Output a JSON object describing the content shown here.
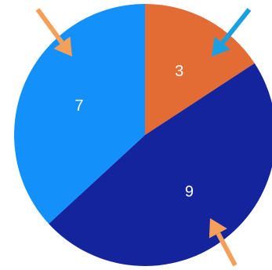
{
  "chart_data": {
    "type": "pie",
    "slices": [
      {
        "label": "3",
        "value": 3,
        "color": "#E36C35"
      },
      {
        "label": "9",
        "value": 9,
        "color": "#14249C"
      },
      {
        "label": "7",
        "value": 7,
        "color": "#1490FA"
      }
    ],
    "start_angle_deg": 0,
    "direction": "clockwise"
  },
  "arrows": [
    {
      "color": "#F5A05A",
      "points_to": "7"
    },
    {
      "color": "#1AA0E0",
      "points_to": "3"
    },
    {
      "color": "#F5A05A",
      "points_to": "9"
    }
  ]
}
